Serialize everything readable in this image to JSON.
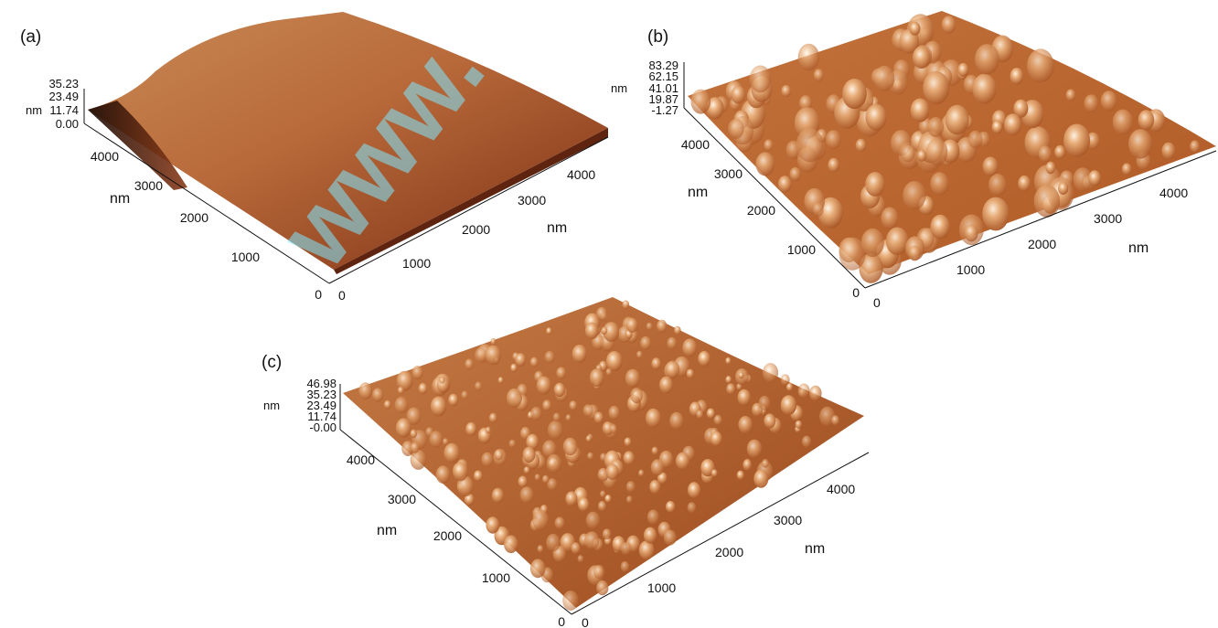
{
  "watermark": "www.",
  "panels": [
    {
      "label": "(a)",
      "z_unit": "nm",
      "z_ticks": [
        "35.23",
        "23.49",
        "11.74",
        "0.00"
      ],
      "y_ticks": [
        "4000",
        "3000",
        "2000",
        "1000",
        "0"
      ],
      "y_unit": "nm",
      "x_ticks": [
        "0",
        "1000",
        "2000",
        "3000",
        "4000"
      ],
      "x_unit": "nm"
    },
    {
      "label": "(b)",
      "z_unit": "nm",
      "z_ticks": [
        "83.29",
        "62.15",
        "41.01",
        "19.87",
        "-1.27"
      ],
      "y_ticks": [
        "4000",
        "3000",
        "2000",
        "1000",
        "0"
      ],
      "y_unit": "nm",
      "x_ticks": [
        "0",
        "1000",
        "2000",
        "3000",
        "4000"
      ],
      "x_unit": "nm"
    },
    {
      "label": "(c)",
      "z_unit": "nm",
      "z_ticks": [
        "46.98",
        "35.23",
        "23.49",
        "11.74",
        "-0.00"
      ],
      "y_ticks": [
        "4000",
        "3000",
        "2000",
        "1000",
        "0"
      ],
      "y_unit": "nm",
      "x_ticks": [
        "0",
        "1000",
        "2000",
        "3000",
        "4000"
      ],
      "x_unit": "nm"
    }
  ]
}
